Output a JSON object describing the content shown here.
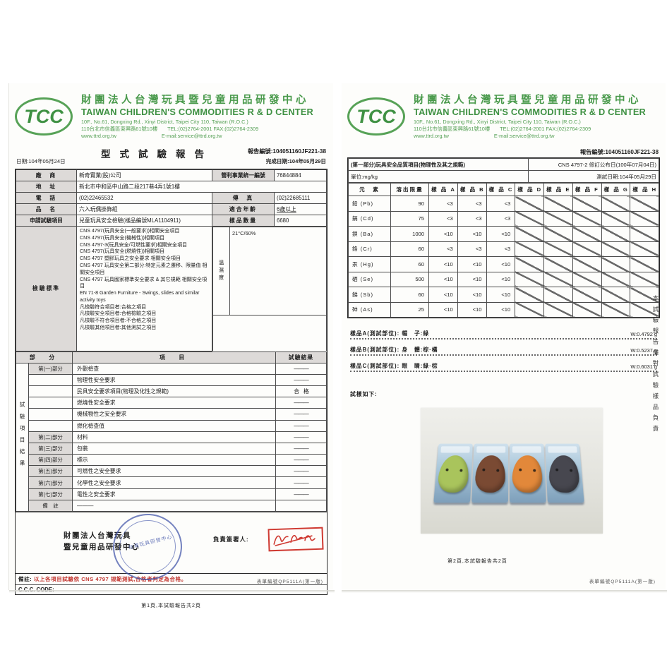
{
  "header": {
    "logo_text": "TCC",
    "cn_title": "財團法人台灣玩具暨兒童用品研發中心",
    "en_title": "TAIWAN CHILDREN'S COMMODITIES R & D CENTER",
    "addr_en": "10F., No.61, Dongxing Rd., Xinyi District, Taipei City 110, Taiwan (R.O.C.)",
    "addr_cn": "110台北市信義區東興路61號10樓",
    "tel_fax": "TEL:(02)2764-2001 FAX:(02)2764-2309",
    "web": "www.ttrd.org.tw",
    "email": "E-mail:service@ttrd.org.tw"
  },
  "page1": {
    "title": "型式試驗報告",
    "report_no": "報告編號:104051160JF221-38",
    "date": "日期:104年05月24日",
    "done_date": "完成日期:104年05月29日",
    "info": {
      "r1": {
        "l1": "廠　商",
        "v1": "新奇實業(股)公司",
        "l2": "營利事業統一編號",
        "v2": "76844884"
      },
      "r2": {
        "l1": "地　址",
        "v1": "新北市中和區中山路二段217巷4弄1號1樓"
      },
      "r3": {
        "l1": "電　話",
        "v1": "(02)22465532",
        "l2": "傳　真",
        "v2": "(02)22685111"
      },
      "r4": {
        "l1": "品　名",
        "v1": "六入玩偶掛飾組",
        "l2": "適合年齡",
        "v2": "6歲以上"
      },
      "r5": {
        "l1": "申請試驗項目",
        "v1": "兒童玩具安全檢驗(樣品編號MLA1104911)",
        "l2": "樣品數量",
        "v2": "6680"
      },
      "r6": {
        "l1": "檢驗標準"
      }
    },
    "standards": [
      "CNS 4797(玩具安全(一般要求))相關安全項目",
      "CNS 4797(玩具安全(機械性))相關項目",
      "CNS 4797-3(玩具安全/可燃性要求)相關安全項目",
      "CNS 4797(玩具安全(燃燒性))相關項目",
      "CNS 4797 塑膠玩具之安全要求 相關安全項目",
      "CNS 4797 玩具安全第二部分:特定元素之遷移、限量值 相關安全項目",
      "CNS 4797 玩具國家標準安全要求 & 其它規範 相關安全項目",
      "EN 71-8 Garden Furniture - Swings, slides and similar activity toys",
      "凡檢驗符合項目者:合格之項目",
      "凡檢驗安全項目者:合格檢驗之項目",
      "凡檢驗不符合項目者:不合格之項目",
      "凡檢驗其他項目者:其他測試之項目"
    ],
    "temp_label": "溫濕度",
    "temp_value": "21°C/60%",
    "results": {
      "h_part": "部　分",
      "h_item": "項　目",
      "h_result": "試驗結果",
      "side_label": "試驗項目結果",
      "rows": [
        {
          "part": "第(一)部分",
          "item": "外觀檢查",
          "result": "———"
        },
        {
          "part": "",
          "item": "物理性安全要求",
          "result": "———"
        },
        {
          "part": "",
          "item": "民具安全要求項目(物理及化性之規範)",
          "result": "合　格"
        },
        {
          "part": "",
          "item": "燃燒性安全要求",
          "result": "———"
        },
        {
          "part": "",
          "item": "機械物性之安全要求",
          "result": "———"
        },
        {
          "part": "",
          "item": "燃化檢查值",
          "result": "———"
        },
        {
          "part": "第(二)部分",
          "item": "材料",
          "result": "———"
        },
        {
          "part": "第(三)部分",
          "item": "包裝",
          "result": "———"
        },
        {
          "part": "第(四)部分",
          "item": "標示",
          "result": "———"
        },
        {
          "part": "第(五)部分",
          "item": "可燃性之安全要求",
          "result": "———"
        },
        {
          "part": "第(六)部分",
          "item": "化學性之安全要求",
          "result": "———"
        },
        {
          "part": "第(七)部分",
          "item": "電性之安全要求",
          "result": "———"
        },
        {
          "part": "備　註",
          "item": "———",
          "result": ""
        }
      ]
    },
    "org_line1": "財團法人台灣玩具",
    "org_line2": "暨兒童用品研發中心",
    "stamp_text": "台灣玩具研發中心",
    "signer_label": "負責簽署人:",
    "note_label": "備註:",
    "note_red": "以上各項目試驗依 CNS 4797 規範測試,合格者判定為合格。",
    "ccc": "C.C.C. CODE:",
    "footer": "第1頁,本試驗報告共2頁",
    "form_no": "表單編號QP5111A(第一版)"
  },
  "page2": {
    "report_no": "報告編號:104051160JF221-38",
    "band_title": "(第一部分)玩具安全品質項目(物理性及其之規範)",
    "band_cns": "CNS 4797-2 修訂公布日(100年07月04日)",
    "band_unit": "單位:mg/kg",
    "band_date": "測試日期:104年05月29日",
    "metals": {
      "headers": [
        "元　素",
        "溶出限量",
        "樣 品 A",
        "樣 品 B",
        "樣 品 C",
        "樣 品 D",
        "樣 品 E",
        "樣 品 F",
        "樣 品 G",
        "樣 品 H"
      ],
      "rows": [
        {
          "el": "鉛 (Pb)",
          "limit": "90",
          "a": "<3",
          "b": "<3",
          "c": "<3"
        },
        {
          "el": "鎘 (Cd)",
          "limit": "75",
          "a": "<3",
          "b": "<3",
          "c": "<3"
        },
        {
          "el": "鋇 (Ba)",
          "limit": "1000",
          "a": "<10",
          "b": "<10",
          "c": "<10"
        },
        {
          "el": "鉻 (Cr)",
          "limit": "60",
          "a": "<3",
          "b": "<3",
          "c": "<3"
        },
        {
          "el": "汞 (Hg)",
          "limit": "60",
          "a": "<10",
          "b": "<10",
          "c": "<10"
        },
        {
          "el": "硒 (Se)",
          "limit": "500",
          "a": "<10",
          "b": "<10",
          "c": "<10"
        },
        {
          "el": "銻 (Sb)",
          "limit": "60",
          "a": "<10",
          "b": "<10",
          "c": "<10"
        },
        {
          "el": "砷 (As)",
          "limit": "25",
          "a": "<10",
          "b": "<10",
          "c": "<10"
        }
      ]
    },
    "samples": [
      {
        "label": "樣品A(測試部位):",
        "part": "帽　子:綠",
        "w": "W:0.4792 g"
      },
      {
        "label": "樣品B(測試部位):",
        "part": "身　體:棕·橘",
        "w": "W:0.5237 g"
      },
      {
        "label": "樣品C(測試部位):",
        "part": "眼　睛:綠·棕",
        "w": "W:0.6031 g"
      }
    ],
    "spec_note": "試樣如下:",
    "photo_blobs": [
      "#a9c45c",
      "#7a4a33",
      "#e2883a",
      "#47474f"
    ],
    "side_note": "本試驗報告僅對試驗樣品負責",
    "footer": "第2頁,本試驗報告共2頁",
    "form_no": "表單編號QP5111A(第一版)"
  },
  "colors": {
    "brand_green": "#3f9143",
    "stamp_blue": "#3e52a8",
    "stamp_red": "#cf3a32",
    "note_red": "#c2342e"
  }
}
